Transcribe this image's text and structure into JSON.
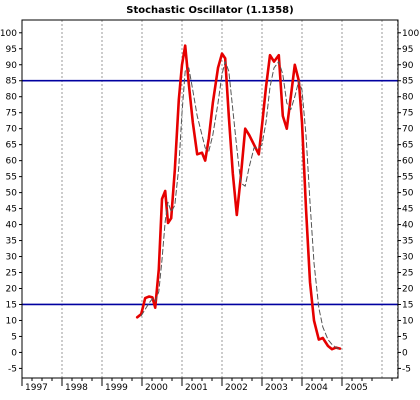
{
  "chart_data": {
    "type": "line",
    "title": "Stochastic Oscillator (1.1358)",
    "xlabel": "",
    "ylabel": "",
    "x_axis": {
      "range": [
        1997.0,
        2006.4
      ],
      "tick_labels": [
        "1997",
        "1998",
        "1999",
        "2000",
        "2001",
        "2002",
        "2003",
        "2004",
        "2005"
      ],
      "tick_values": [
        1997,
        1998,
        1999,
        2000,
        2001,
        2002,
        2003,
        2004,
        2005
      ]
    },
    "y_axis": {
      "range": [
        -8,
        104
      ],
      "tick_values": [
        -5,
        0,
        5,
        10,
        15,
        20,
        25,
        30,
        35,
        40,
        45,
        50,
        55,
        60,
        65,
        70,
        75,
        80,
        85,
        90,
        95,
        100
      ],
      "tick_labels": [
        "-5",
        "0",
        "5",
        "10",
        "15",
        "20",
        "25",
        "30",
        "35",
        "40",
        "45",
        "50",
        "55",
        "60",
        "65",
        "70",
        "75",
        "80",
        "85",
        "90",
        "95",
        "100"
      ],
      "labels_both_sides": true
    },
    "grid": {
      "vertical": true,
      "horizontal": false,
      "style": "dashed"
    },
    "reference_lines": [
      {
        "y": 85,
        "color": "#0000a0"
      },
      {
        "y": 15,
        "color": "#0000a0"
      }
    ],
    "series": [
      {
        "color": "#e60000",
        "style": "solid",
        "x": [
          1999.88,
          1999.98,
          2000.08,
          2000.18,
          2000.26,
          2000.33,
          2000.42,
          2000.5,
          2000.58,
          2000.65,
          2000.73,
          2000.82,
          2000.92,
          2001.0,
          2001.08,
          2001.17,
          2001.27,
          2001.38,
          2001.5,
          2001.58,
          2001.67,
          2001.77,
          2001.9,
          2002.0,
          2002.08,
          2002.17,
          2002.27,
          2002.37,
          2002.47,
          2002.58,
          2002.68,
          2002.8,
          2002.92,
          2003.0,
          2003.1,
          2003.2,
          2003.3,
          2003.42,
          2003.52,
          2003.62,
          2003.72,
          2003.82,
          2003.92,
          2004.0,
          2004.1,
          2004.2,
          2004.3,
          2004.42,
          2004.52,
          2004.65,
          2004.75,
          2004.85,
          2004.95
        ],
        "y": [
          11,
          12,
          17,
          17.5,
          17.2,
          14,
          26,
          48,
          50.5,
          40.5,
          42,
          57,
          79,
          90,
          96,
          84,
          72,
          62,
          62.5,
          60,
          67,
          78,
          89,
          93.5,
          92,
          74,
          56,
          43,
          55,
          70,
          68,
          65,
          62,
          71,
          83,
          93,
          91,
          93,
          74,
          70,
          80,
          90,
          85,
          72,
          45,
          22,
          10,
          4,
          4.5,
          2,
          1,
          1.5,
          1.2
        ]
      },
      {
        "color": "#555555",
        "style": "dashed",
        "x": [
          1999.98,
          2000.08,
          2000.18,
          2000.26,
          2000.33,
          2000.42,
          2000.5,
          2000.58,
          2000.65,
          2000.73,
          2000.82,
          2000.92,
          2001.0,
          2001.08,
          2001.17,
          2001.27,
          2001.38,
          2001.5,
          2001.58,
          2001.67,
          2001.77,
          2001.9,
          2002.0,
          2002.08,
          2002.17,
          2002.27,
          2002.37,
          2002.47,
          2002.58,
          2002.68,
          2002.8,
          2002.92,
          2003.0,
          2003.1,
          2003.2,
          2003.3,
          2003.42,
          2003.52,
          2003.62,
          2003.72,
          2003.82,
          2003.92,
          2004.0,
          2004.1,
          2004.2,
          2004.3,
          2004.42,
          2004.52,
          2004.65,
          2004.75,
          2004.85,
          2004.95
        ],
        "y": [
          11.5,
          13.5,
          15.5,
          16.8,
          16,
          19,
          29,
          41,
          47,
          44,
          46,
          58,
          75,
          88,
          89,
          82,
          74,
          68,
          64,
          63,
          68,
          78,
          87,
          91,
          88,
          76,
          64,
          53,
          52,
          58,
          64,
          64,
          65,
          72,
          83,
          89,
          91,
          87,
          78,
          76,
          80,
          85,
          82,
          68,
          47,
          28,
          14,
          8,
          4,
          2.5,
          1.5,
          1
        ]
      }
    ]
  }
}
